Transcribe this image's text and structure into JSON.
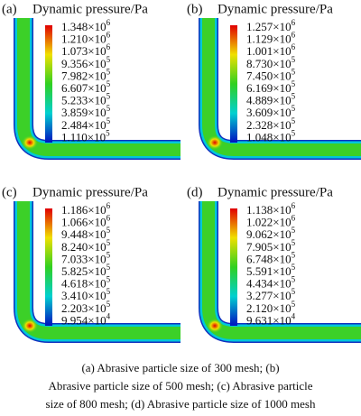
{
  "panels": [
    {
      "label": "(a)",
      "title": "Dynamic pressure/Pa",
      "legend": [
        {
          "base": "1.348×10",
          "exp": "6"
        },
        {
          "base": "1.210×10",
          "exp": "6"
        },
        {
          "base": "1.073×10",
          "exp": "6"
        },
        {
          "base": "9.356×10",
          "exp": "5"
        },
        {
          "base": "7.982×10",
          "exp": "5"
        },
        {
          "base": "6.607×10",
          "exp": "5"
        },
        {
          "base": "5.233×10",
          "exp": "5"
        },
        {
          "base": "3.859×10",
          "exp": "5"
        },
        {
          "base": "2.484×10",
          "exp": "5"
        },
        {
          "base": "1.110×10",
          "exp": "5"
        }
      ]
    },
    {
      "label": "(b)",
      "title": "Dynamic pressure/Pa",
      "legend": [
        {
          "base": "1.257×10",
          "exp": "6"
        },
        {
          "base": "1.129×10",
          "exp": "6"
        },
        {
          "base": "1.001×10",
          "exp": "6"
        },
        {
          "base": "8.730×10",
          "exp": "5"
        },
        {
          "base": "7.450×10",
          "exp": "5"
        },
        {
          "base": "6.169×10",
          "exp": "5"
        },
        {
          "base": "4.889×10",
          "exp": "5"
        },
        {
          "base": "3.609×10",
          "exp": "5"
        },
        {
          "base": "2.328×10",
          "exp": "5"
        },
        {
          "base": "1.048×10",
          "exp": "5"
        }
      ]
    },
    {
      "label": "(c)",
      "title": "Dynamic pressure/Pa",
      "legend": [
        {
          "base": "1.186×10",
          "exp": "6"
        },
        {
          "base": "1.066×10",
          "exp": "6"
        },
        {
          "base": "9.448×10",
          "exp": "5"
        },
        {
          "base": "8.240×10",
          "exp": "5"
        },
        {
          "base": "7.033×10",
          "exp": "5"
        },
        {
          "base": "5.825×10",
          "exp": "5"
        },
        {
          "base": "4.618×10",
          "exp": "5"
        },
        {
          "base": "3.410×10",
          "exp": "5"
        },
        {
          "base": "2.203×10",
          "exp": "5"
        },
        {
          "base": "9.954×10",
          "exp": "4"
        }
      ]
    },
    {
      "label": "(d)",
      "title": "Dynamic pressure/Pa",
      "legend": [
        {
          "base": "1.138×10",
          "exp": "6"
        },
        {
          "base": "1.022×10",
          "exp": "6"
        },
        {
          "base": "9.062×10",
          "exp": "5"
        },
        {
          "base": "7.905×10",
          "exp": "5"
        },
        {
          "base": "6.748×10",
          "exp": "5"
        },
        {
          "base": "5.591×10",
          "exp": "5"
        },
        {
          "base": "4.434×10",
          "exp": "5"
        },
        {
          "base": "3.277×10",
          "exp": "5"
        },
        {
          "base": "2.120×10",
          "exp": "5"
        },
        {
          "base": "9.631×10",
          "exp": "4"
        }
      ]
    }
  ],
  "caption": [
    "(a) Abrasive particle size of 300 mesh; (b)",
    "Abrasive particle size of 500 mesh; (c) Abrasive particle",
    "size of 800 mesh; (d) Abrasive particle size of 1000 mesh"
  ]
}
